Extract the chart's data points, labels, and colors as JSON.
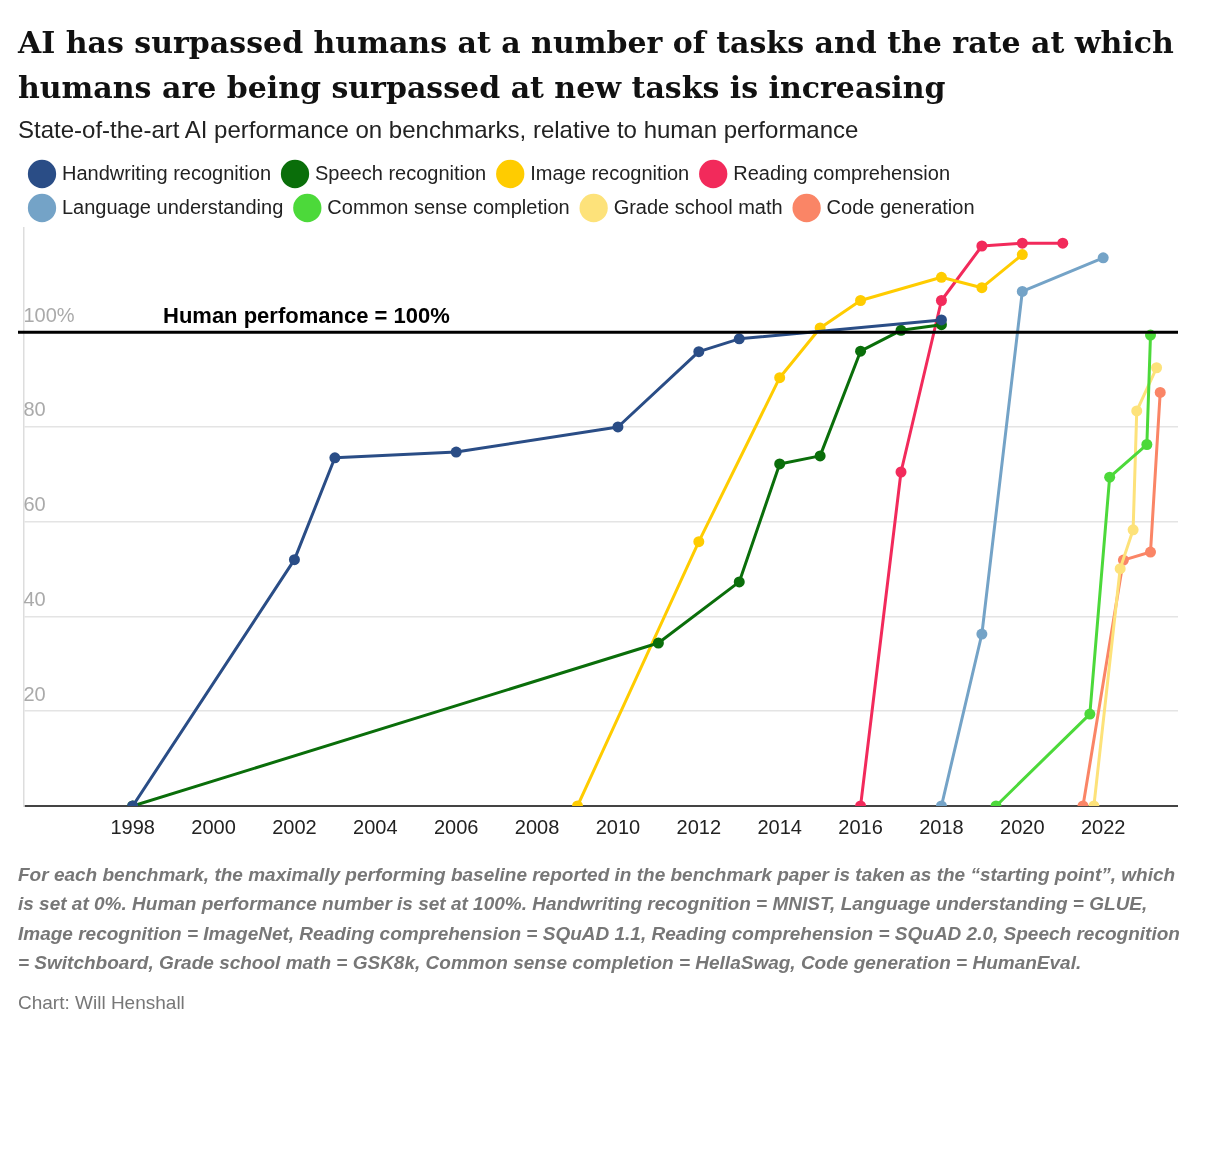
{
  "chart_data": {
    "type": "line",
    "title": "AI has surpassed humans at a number of tasks and the rate at which humans are being surpassed at new tasks is increasing",
    "subtitle": "State-of-the-art AI performance on benchmarks, relative to human performance",
    "series": [
      {
        "name": "Handwriting recognition",
        "color": "#2a4d86",
        "x": [
          1998,
          2002,
          2003,
          2006,
          2010,
          2012,
          2013,
          2018
        ],
        "values": [
          0,
          52,
          73.5,
          74.7,
          80,
          95.9,
          98.6,
          102.6
        ]
      },
      {
        "name": "Speech recognition",
        "color": "#0a6e0a",
        "x": [
          1998,
          2011,
          2013,
          2014,
          2015,
          2016,
          2017,
          2018
        ],
        "values": [
          0,
          34.4,
          47.3,
          72.2,
          73.9,
          96,
          100.4,
          101.6
        ]
      },
      {
        "name": "Image recognition",
        "color": "#ffcc00",
        "x": [
          2009,
          2012,
          2014,
          2015,
          2016,
          2018,
          2019,
          2020
        ],
        "values": [
          0,
          55.8,
          90.4,
          100.9,
          106.7,
          111.6,
          109.4,
          116.4
        ]
      },
      {
        "name": "Reading comprehension",
        "color": "#f22a5b",
        "x": [
          2016,
          2017,
          2018,
          2019,
          2020,
          2021
        ],
        "values": [
          0,
          70.5,
          106.7,
          118.2,
          118.8,
          118.8
        ]
      },
      {
        "name": "Language understanding",
        "color": "#74a3c7",
        "x": [
          2018,
          2019,
          2020,
          2022
        ],
        "values": [
          0,
          36.3,
          108.6,
          115.7
        ]
      },
      {
        "name": "Common sense completion",
        "color": "#4cd93a",
        "x": [
          2019.35,
          2021.67,
          2022.16,
          2023.08,
          2023.17
        ],
        "values": [
          0,
          19.4,
          69.4,
          76.3,
          99.4
        ]
      },
      {
        "name": "Grade school math",
        "color": "#fde27a",
        "x": [
          2021.77,
          2022.42,
          2022.74,
          2022.83,
          2023.32
        ],
        "values": [
          0,
          50.1,
          58.3,
          83.4,
          92.5
        ]
      },
      {
        "name": "Code generation",
        "color": "#fa8566",
        "x": [
          2021.5,
          2022.5,
          2023.17,
          2023.41
        ],
        "values": [
          0,
          51.9,
          53.6,
          87.3
        ]
      }
    ],
    "xlim": [
      1995.3,
      2023.85
    ],
    "xticks": [
      1998,
      2000,
      2002,
      2004,
      2006,
      2008,
      2010,
      2012,
      2014,
      2016,
      2018,
      2020,
      2022
    ],
    "ylim": [
      0,
      122
    ],
    "yticks": [
      {
        "value": 0,
        "label": null
      },
      20,
      40,
      60,
      80,
      {
        "value": 100,
        "label": "100%"
      }
    ],
    "ref_lines": [
      {
        "axis": "y",
        "value": 100,
        "label": "Human perfomance = 100%",
        "color": "#000000"
      }
    ],
    "annotations": [
      "For each benchmark, the maximally performing baseline reported in the benchmark paper is taken as the “starting point”, which is set at 0%. Human performance number is set at 100%. Handwriting recognition = MNIST, Language understanding = GLUE, Image recognition = ImageNet, Reading comprehension = SQuAD 1.1, Reading comprehension = SQuAD 2.0, Speech recognition = Switchboard, Grade school math = GSK8k, Common sense completion = HellaSwag, Code generation = HumanEval.",
      "Chart: Will Henshall"
    ],
    "grid": "y",
    "legend": "top",
    "marker": "circle",
    "line_style": "solid"
  }
}
